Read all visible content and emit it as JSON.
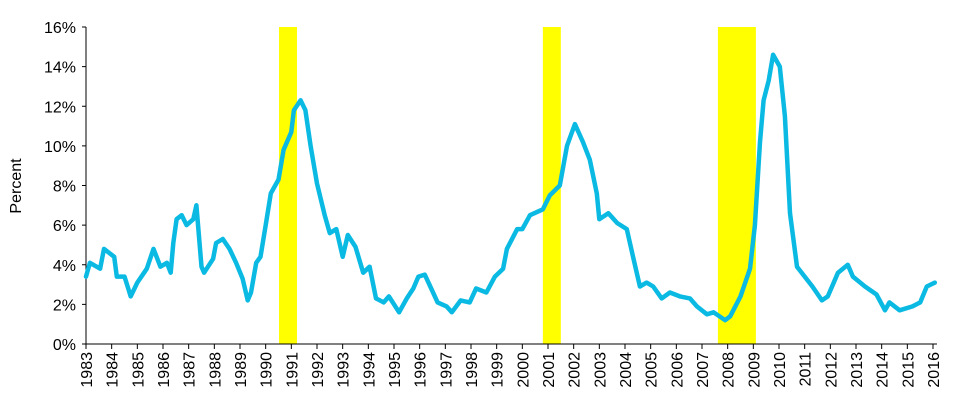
{
  "chart_data": {
    "type": "line",
    "title": "",
    "xlabel": "",
    "ylabel": "Percent",
    "xlim": [
      1983,
      2016
    ],
    "ylim": [
      0,
      16
    ],
    "grid": false,
    "legend": "none",
    "x_tick_labels": [
      "1983",
      "1984",
      "1985",
      "1986",
      "1987",
      "1988",
      "1989",
      "1990",
      "1991",
      "1992",
      "1993",
      "1994",
      "1995",
      "1996",
      "1997",
      "1998",
      "1999",
      "2000",
      "2001",
      "2002",
      "2003",
      "2004",
      "2005",
      "2006",
      "2007",
      "2008",
      "2009",
      "2010",
      "2011",
      "2012",
      "2013",
      "2014",
      "2015",
      "2016"
    ],
    "y_tick_labels": [
      "0%",
      "2%",
      "4%",
      "6%",
      "8%",
      "10%",
      "12%",
      "14%",
      "16%"
    ],
    "y_ticks": [
      0,
      2,
      4,
      6,
      8,
      10,
      12,
      14,
      16
    ],
    "colors": {
      "line": "#0ABAE3",
      "recession": "#FFFF00",
      "axis": "#000000"
    },
    "shaded_periods": [
      {
        "start": 1990.52,
        "end": 1991.22
      },
      {
        "start": 2000.8,
        "end": 2001.5
      },
      {
        "start": 2007.62,
        "end": 2009.1
      }
    ],
    "series": [
      {
        "x": [
          1983.0,
          1983.15,
          1983.55,
          1983.7,
          1984.1,
          1984.2,
          1984.5,
          1984.74,
          1985.0,
          1985.37,
          1985.63,
          1985.9,
          1986.15,
          1986.3,
          1986.4,
          1986.53,
          1986.73,
          1986.92,
          1987.18,
          1987.3,
          1987.5,
          1987.6,
          1987.95,
          1988.07,
          1988.33,
          1988.59,
          1988.85,
          1989.1,
          1989.3,
          1989.43,
          1989.63,
          1989.8,
          1990.0,
          1990.2,
          1990.5,
          1990.7,
          1991.0,
          1991.1,
          1991.36,
          1991.55,
          1991.75,
          1992.0,
          1992.3,
          1992.5,
          1992.75,
          1993.0,
          1993.2,
          1993.5,
          1993.8,
          1994.05,
          1994.3,
          1994.6,
          1994.8,
          1995.2,
          1995.5,
          1995.75,
          1995.95,
          1996.2,
          1996.45,
          1996.7,
          1997.05,
          1997.25,
          1997.6,
          1997.95,
          1998.2,
          1998.6,
          1998.93,
          1999.25,
          1999.4,
          1999.8,
          2000.0,
          2000.3,
          2000.8,
          2001.07,
          2001.46,
          2001.74,
          2002.05,
          2002.36,
          2002.63,
          2002.9,
          2003.0,
          2003.35,
          2003.7,
          2004.07,
          2004.33,
          2004.58,
          2004.84,
          2005.1,
          2005.43,
          2005.75,
          2006.14,
          2006.53,
          2006.8,
          2007.19,
          2007.45,
          2007.9,
          2008.1,
          2008.5,
          2008.87,
          2009.06,
          2009.26,
          2009.4,
          2009.6,
          2009.77,
          2010.03,
          2010.23,
          2010.43,
          2010.7,
          2011.0,
          2011.3,
          2011.67,
          2011.9,
          2012.3,
          2012.68,
          2012.88,
          2013.35,
          2013.8,
          2014.13,
          2014.3,
          2014.7,
          2015.2,
          2015.5,
          2015.76,
          2016.07
        ],
        "y": [
          3.4,
          4.1,
          3.8,
          4.8,
          4.4,
          3.4,
          3.4,
          2.4,
          3.1,
          3.8,
          4.8,
          3.9,
          4.1,
          3.6,
          5.1,
          6.3,
          6.5,
          6.0,
          6.3,
          7.0,
          3.9,
          3.6,
          4.3,
          5.1,
          5.3,
          4.8,
          4.1,
          3.3,
          2.2,
          2.6,
          4.1,
          4.4,
          6.0,
          7.6,
          8.3,
          9.8,
          10.7,
          11.8,
          12.3,
          11.8,
          10.0,
          8.1,
          6.5,
          5.6,
          5.8,
          4.4,
          5.5,
          4.9,
          3.6,
          3.9,
          2.3,
          2.1,
          2.4,
          1.6,
          2.3,
          2.8,
          3.4,
          3.5,
          2.8,
          2.1,
          1.9,
          1.6,
          2.2,
          2.1,
          2.8,
          2.6,
          3.4,
          3.8,
          4.8,
          5.8,
          5.8,
          6.5,
          6.8,
          7.5,
          8.0,
          10.0,
          11.1,
          10.2,
          9.3,
          7.6,
          6.3,
          6.6,
          6.1,
          5.8,
          4.3,
          2.9,
          3.1,
          2.9,
          2.3,
          2.6,
          2.4,
          2.3,
          1.9,
          1.5,
          1.6,
          1.2,
          1.4,
          2.4,
          3.8,
          6.0,
          10.2,
          12.3,
          13.3,
          14.6,
          14.0,
          11.5,
          6.6,
          3.9,
          3.4,
          2.9,
          2.2,
          2.4,
          3.6,
          4.0,
          3.4,
          2.9,
          2.5,
          1.7,
          2.1,
          1.7,
          1.9,
          2.1,
          2.9,
          3.1
        ]
      }
    ]
  }
}
